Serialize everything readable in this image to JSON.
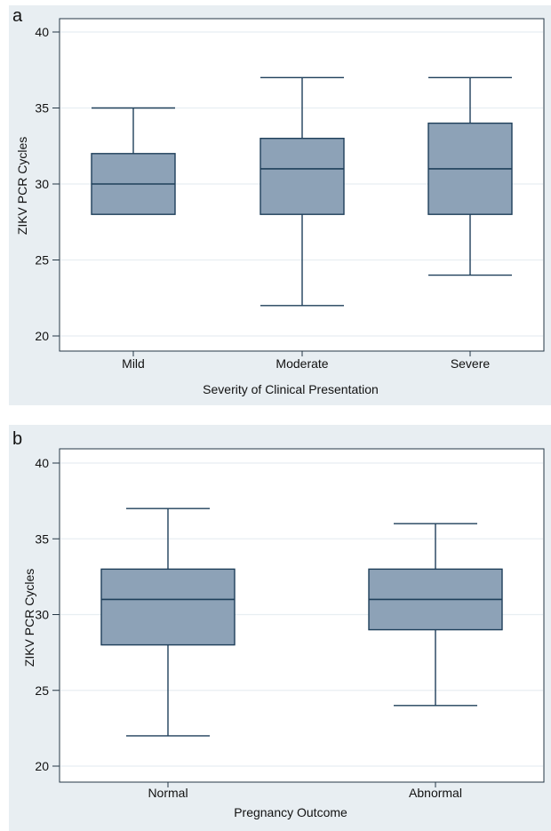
{
  "chart_data": [
    {
      "type": "box",
      "panel_label": "a",
      "xlabel": "Severity of Clinical Presentation",
      "ylabel": "ZIKV PCR Cycles",
      "ylim": [
        20,
        40
      ],
      "yticks": [
        20,
        25,
        30,
        35,
        40
      ],
      "grid": true,
      "categories": [
        "Mild",
        "Moderate",
        "Severe"
      ],
      "boxes": [
        {
          "category": "Mild",
          "min": 28,
          "q1": 28,
          "median": 30,
          "q3": 32,
          "max": 35
        },
        {
          "category": "Moderate",
          "min": 22,
          "q1": 28,
          "median": 31,
          "q3": 33,
          "max": 37
        },
        {
          "category": "Severe",
          "min": 24,
          "q1": 28,
          "median": 31,
          "q3": 34,
          "max": 37
        }
      ]
    },
    {
      "type": "box",
      "panel_label": "b",
      "xlabel": "Pregnancy Outcome",
      "ylabel": "ZIKV PCR Cycles",
      "ylim": [
        20,
        40
      ],
      "yticks": [
        20,
        25,
        30,
        35,
        40
      ],
      "grid": true,
      "categories": [
        "Normal",
        "Abnormal"
      ],
      "boxes": [
        {
          "category": "Normal",
          "min": 22,
          "q1": 28,
          "median": 31,
          "q3": 33,
          "max": 37
        },
        {
          "category": "Abnormal",
          "min": 24,
          "q1": 29,
          "median": 31,
          "q3": 33,
          "max": 36
        }
      ]
    }
  ]
}
